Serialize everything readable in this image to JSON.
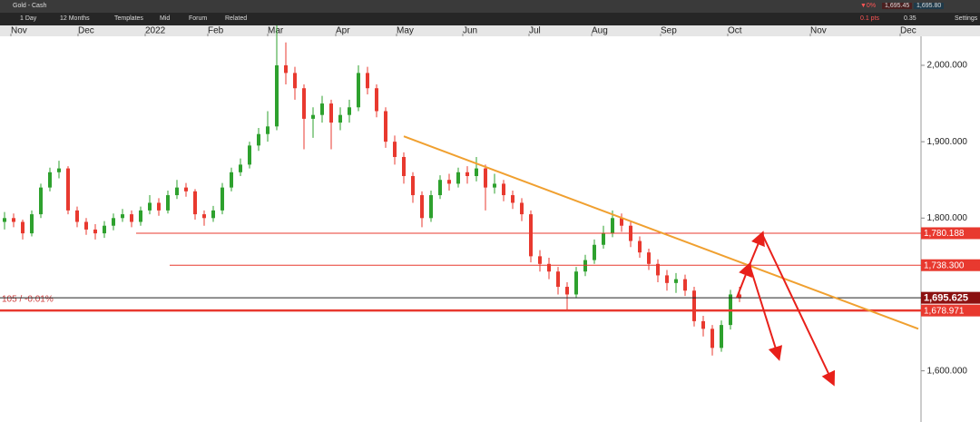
{
  "toolbar": {
    "instrument": "Gold - Cash",
    "change": "▼0%",
    "change_pts": "0.1 pts",
    "bid": "1,695.45",
    "ask": "1,695.80",
    "spread": "0.35",
    "interval": "1 Day",
    "range": "12 Months",
    "templates": "Templates",
    "mid": "Mid",
    "forum": "Forum",
    "related": "Related",
    "settings": "Settings"
  },
  "chart_data": {
    "type": "candlestick",
    "annotation": "105 / -0.01%",
    "open": [
      1795,
      1800,
      1795,
      1780,
      1805,
      1840,
      1860,
      1865,
      1810,
      1795,
      1785,
      1780,
      1790,
      1800,
      1805,
      1795,
      1810,
      1820,
      1810,
      1830,
      1840,
      1835,
      1805,
      1800,
      1810,
      1840,
      1860,
      1870,
      1895,
      1910,
      1920,
      2000,
      1990,
      1970,
      1930,
      1935,
      1950,
      1925,
      1935,
      1945,
      1990,
      1970,
      1940,
      1900,
      1880,
      1855,
      1830,
      1800,
      1830,
      1850,
      1845,
      1860,
      1855,
      1865,
      1840,
      1845,
      1830,
      1820,
      1805,
      1750,
      1740,
      1730,
      1710,
      1700,
      1730,
      1745,
      1765,
      1780,
      1800,
      1790,
      1770,
      1755,
      1740,
      1725,
      1715,
      1720,
      1705,
      1665,
      1655,
      1630,
      1660,
      1700
    ],
    "high": [
      1808,
      1806,
      1798,
      1810,
      1845,
      1866,
      1875,
      1868,
      1815,
      1800,
      1792,
      1796,
      1806,
      1812,
      1810,
      1815,
      1830,
      1826,
      1836,
      1850,
      1846,
      1838,
      1810,
      1816,
      1846,
      1866,
      1878,
      1900,
      1918,
      1940,
      2065,
      2030,
      1998,
      1975,
      1945,
      1960,
      1955,
      1945,
      1955,
      2000,
      1998,
      1975,
      1945,
      1908,
      1886,
      1860,
      1835,
      1836,
      1856,
      1858,
      1866,
      1868,
      1880,
      1870,
      1858,
      1850,
      1836,
      1826,
      1810,
      1758,
      1748,
      1736,
      1716,
      1736,
      1752,
      1772,
      1790,
      1810,
      1806,
      1795,
      1776,
      1760,
      1746,
      1732,
      1728,
      1726,
      1710,
      1672,
      1660,
      1666,
      1706,
      1710
    ],
    "low": [
      1785,
      1788,
      1772,
      1776,
      1800,
      1835,
      1852,
      1805,
      1788,
      1778,
      1772,
      1774,
      1784,
      1795,
      1788,
      1790,
      1805,
      1803,
      1806,
      1825,
      1828,
      1798,
      1790,
      1795,
      1805,
      1835,
      1855,
      1865,
      1888,
      1900,
      1915,
      1975,
      1955,
      1890,
      1905,
      1925,
      1890,
      1915,
      1925,
      1940,
      1962,
      1932,
      1892,
      1870,
      1845,
      1820,
      1788,
      1795,
      1825,
      1836,
      1840,
      1845,
      1848,
      1810,
      1832,
      1822,
      1812,
      1796,
      1742,
      1730,
      1720,
      1700,
      1680,
      1695,
      1724,
      1740,
      1760,
      1775,
      1782,
      1762,
      1748,
      1732,
      1716,
      1705,
      1702,
      1698,
      1658,
      1645,
      1620,
      1625,
      1654,
      1690
    ],
    "close": [
      1800,
      1795,
      1780,
      1805,
      1840,
      1860,
      1865,
      1810,
      1795,
      1785,
      1780,
      1790,
      1800,
      1805,
      1795,
      1810,
      1820,
      1810,
      1830,
      1840,
      1835,
      1805,
      1800,
      1810,
      1840,
      1860,
      1870,
      1895,
      1910,
      1920,
      2000,
      1990,
      1970,
      1930,
      1935,
      1950,
      1925,
      1935,
      1945,
      1990,
      1970,
      1940,
      1900,
      1880,
      1855,
      1830,
      1800,
      1830,
      1850,
      1845,
      1860,
      1855,
      1865,
      1840,
      1845,
      1830,
      1820,
      1805,
      1750,
      1740,
      1730,
      1710,
      1700,
      1730,
      1745,
      1765,
      1780,
      1800,
      1790,
      1770,
      1755,
      1740,
      1725,
      1715,
      1720,
      1705,
      1665,
      1655,
      1630,
      1660,
      1700,
      1695
    ],
    "up_color": "#2ea12e",
    "down_color": "#e8392f",
    "xlim": [
      0,
      101.5
    ],
    "xticks": [
      {
        "value": 1.2,
        "label": "Nov"
      },
      {
        "value": 8.6,
        "label": "Dec"
      },
      {
        "value": 16,
        "label": "2022"
      },
      {
        "value": 22.9,
        "label": "Feb"
      },
      {
        "value": 29.5,
        "label": "Mar"
      },
      {
        "value": 37,
        "label": "Apr"
      },
      {
        "value": 43.7,
        "label": "May"
      },
      {
        "value": 51,
        "label": "Jun"
      },
      {
        "value": 58.3,
        "label": "Jul"
      },
      {
        "value": 65.2,
        "label": "Aug"
      },
      {
        "value": 72.8,
        "label": "Sep"
      },
      {
        "value": 80.2,
        "label": "Oct"
      },
      {
        "value": 89.3,
        "label": "Nov"
      },
      {
        "value": 99.2,
        "label": "Dec"
      }
    ],
    "ylim": [
      1533,
      2038
    ],
    "yticks": [
      {
        "value": 1600,
        "label": "1,600.000"
      },
      {
        "value": 1800,
        "label": "1,800.000"
      },
      {
        "value": 1900,
        "label": "1,900.000"
      },
      {
        "value": 2000,
        "label": "2,000.000"
      }
    ],
    "levels": [
      {
        "value": 1780.188,
        "label": "1,780.188",
        "color": "#e8392f"
      },
      {
        "value": 1738.3,
        "label": "1,738.300",
        "color": "#e8392f"
      },
      {
        "value": 1678.971,
        "label": "1,678.971",
        "color": "#e8392f"
      },
      {
        "value": 1695.625,
        "label": "1,695.625",
        "color": "#8b1010"
      }
    ],
    "trendline": {
      "start": [
        44.5,
        1907
      ],
      "end": [
        101.2,
        1655
      ],
      "color": "#f0a030"
    }
  }
}
